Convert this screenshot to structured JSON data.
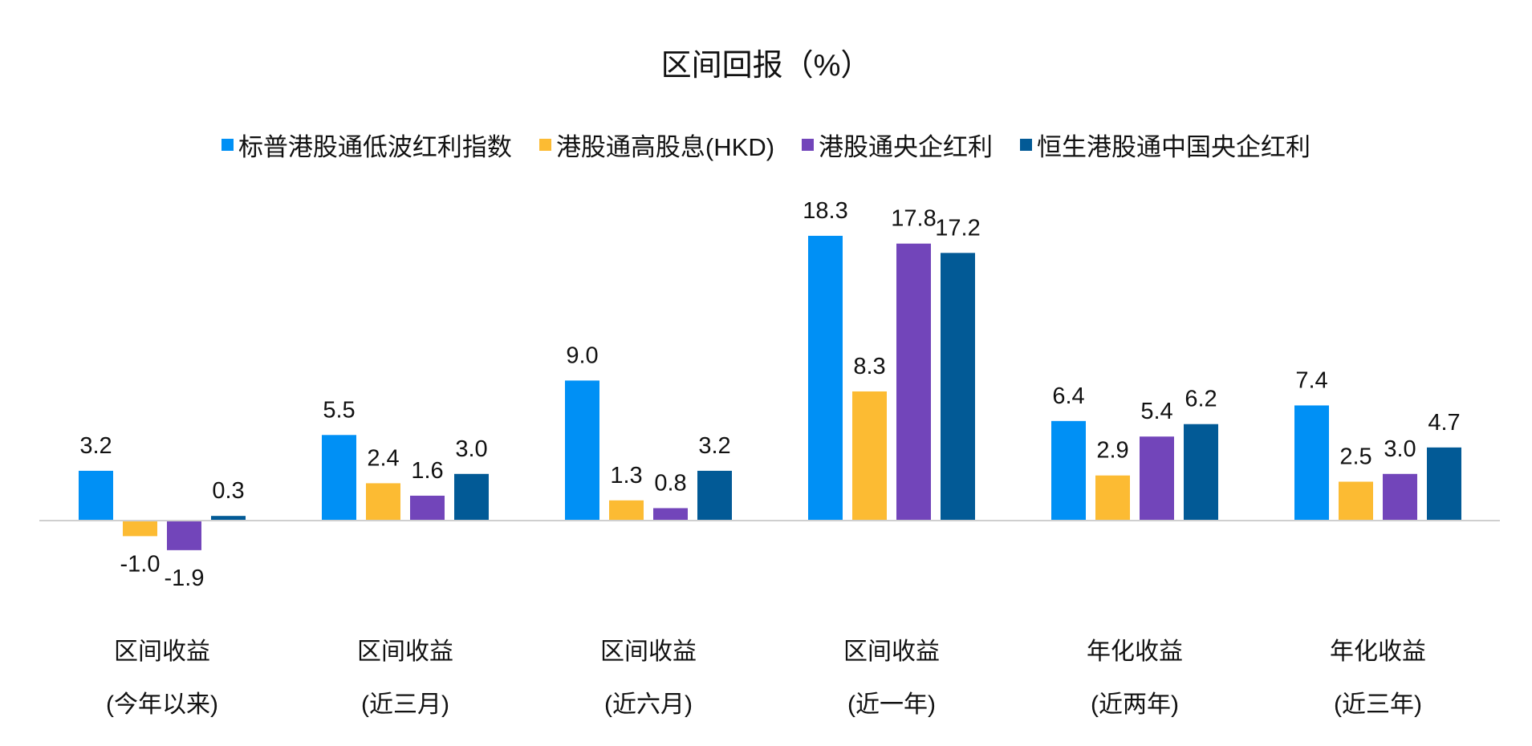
{
  "chart_data": {
    "type": "bar",
    "title": "区间回报（%）",
    "categories": [
      [
        "区间收益",
        "(今年以来)"
      ],
      [
        "区间收益",
        "(近三月)"
      ],
      [
        "区间收益",
        "(近六月)"
      ],
      [
        "区间收益",
        "(近一年)"
      ],
      [
        "年化收益",
        "(近两年)"
      ],
      [
        "年化收益",
        "(近三年)"
      ]
    ],
    "series": [
      {
        "name": "标普港股通低波红利指数",
        "color": "#0090F5",
        "values": [
          3.2,
          5.5,
          9.0,
          18.3,
          6.4,
          7.4
        ]
      },
      {
        "name": "港股通高股息(HKD)",
        "color": "#FCBB33",
        "values": [
          -1.0,
          2.4,
          1.3,
          8.3,
          2.9,
          2.5
        ]
      },
      {
        "name": "港股通央企红利",
        "color": "#7245BA",
        "values": [
          -1.9,
          1.6,
          0.8,
          17.8,
          5.4,
          3.0
        ]
      },
      {
        "name": "恒生港股通中国央企红利",
        "color": "#025A96",
        "values": [
          0.3,
          3.0,
          3.2,
          17.2,
          6.2,
          4.7
        ]
      }
    ],
    "data_labels": true,
    "grid": false,
    "legend": "top",
    "xlabel": "",
    "ylabel": ""
  }
}
